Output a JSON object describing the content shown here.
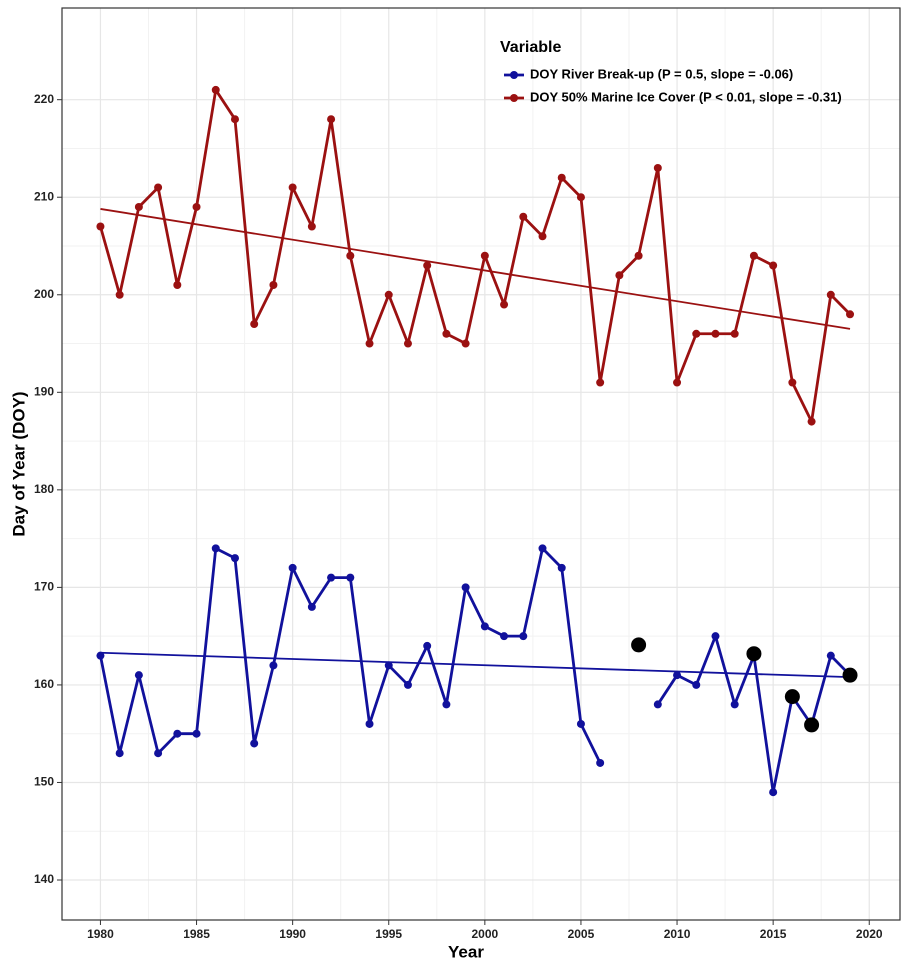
{
  "chart_data": {
    "type": "line",
    "x_label": "Year",
    "y_label": "Day of Year (DOY)",
    "legend_title": "Variable",
    "legend_position": "top-right",
    "grid": true,
    "minor_grid": true,
    "xlim": [
      1978,
      2021.6
    ],
    "ylim": [
      135.9,
      229.4
    ],
    "xticks": [
      1980,
      1985,
      1990,
      1995,
      2000,
      2005,
      2010,
      2015,
      2020
    ],
    "yticks": [
      140,
      150,
      160,
      170,
      180,
      190,
      200,
      210,
      220
    ],
    "x": [
      1980,
      1981,
      1982,
      1983,
      1984,
      1985,
      1986,
      1987,
      1988,
      1989,
      1990,
      1991,
      1992,
      1993,
      1994,
      1995,
      1996,
      1997,
      1998,
      1999,
      2000,
      2001,
      2002,
      2003,
      2004,
      2005,
      2006,
      2007,
      2008,
      2009,
      2010,
      2011,
      2012,
      2013,
      2014,
      2015,
      2016,
      2017,
      2018,
      2019
    ],
    "trend_x": [
      1980,
      2019
    ],
    "series": [
      {
        "name": "DOY River Break-up (P = 0.5, slope = -0.06)",
        "color": "#11119c",
        "values": [
          163,
          153,
          161,
          153,
          155,
          155,
          174,
          173,
          154,
          162,
          172,
          168,
          171,
          171,
          156,
          162,
          160,
          164,
          158,
          170,
          166,
          165,
          165,
          174,
          172,
          156,
          152,
          null,
          null,
          158,
          161,
          160,
          165,
          158,
          163,
          149,
          158.8,
          155.9,
          163,
          161
        ],
        "trend": [
          163.3,
          160.8
        ]
      },
      {
        "name": "DOY 50% Marine Ice Cover (P < 0.01, slope = -0.31)",
        "color": "#9b1111",
        "values": [
          207,
          200,
          209,
          211,
          201,
          209,
          221,
          218,
          197,
          201,
          211,
          207,
          218,
          204,
          195,
          200,
          195,
          203,
          196,
          195,
          204,
          199,
          208,
          206,
          212,
          210,
          191,
          202,
          204,
          213,
          191,
          196,
          196,
          196,
          204,
          203,
          191,
          187,
          200,
          198
        ],
        "trend": [
          208.8,
          196.5
        ]
      }
    ],
    "highlight_points": {
      "color": "#000000",
      "x": [
        2008,
        2014,
        2016,
        2017,
        2019
      ],
      "values": [
        164.1,
        163.2,
        158.8,
        155.9,
        161
      ]
    }
  }
}
